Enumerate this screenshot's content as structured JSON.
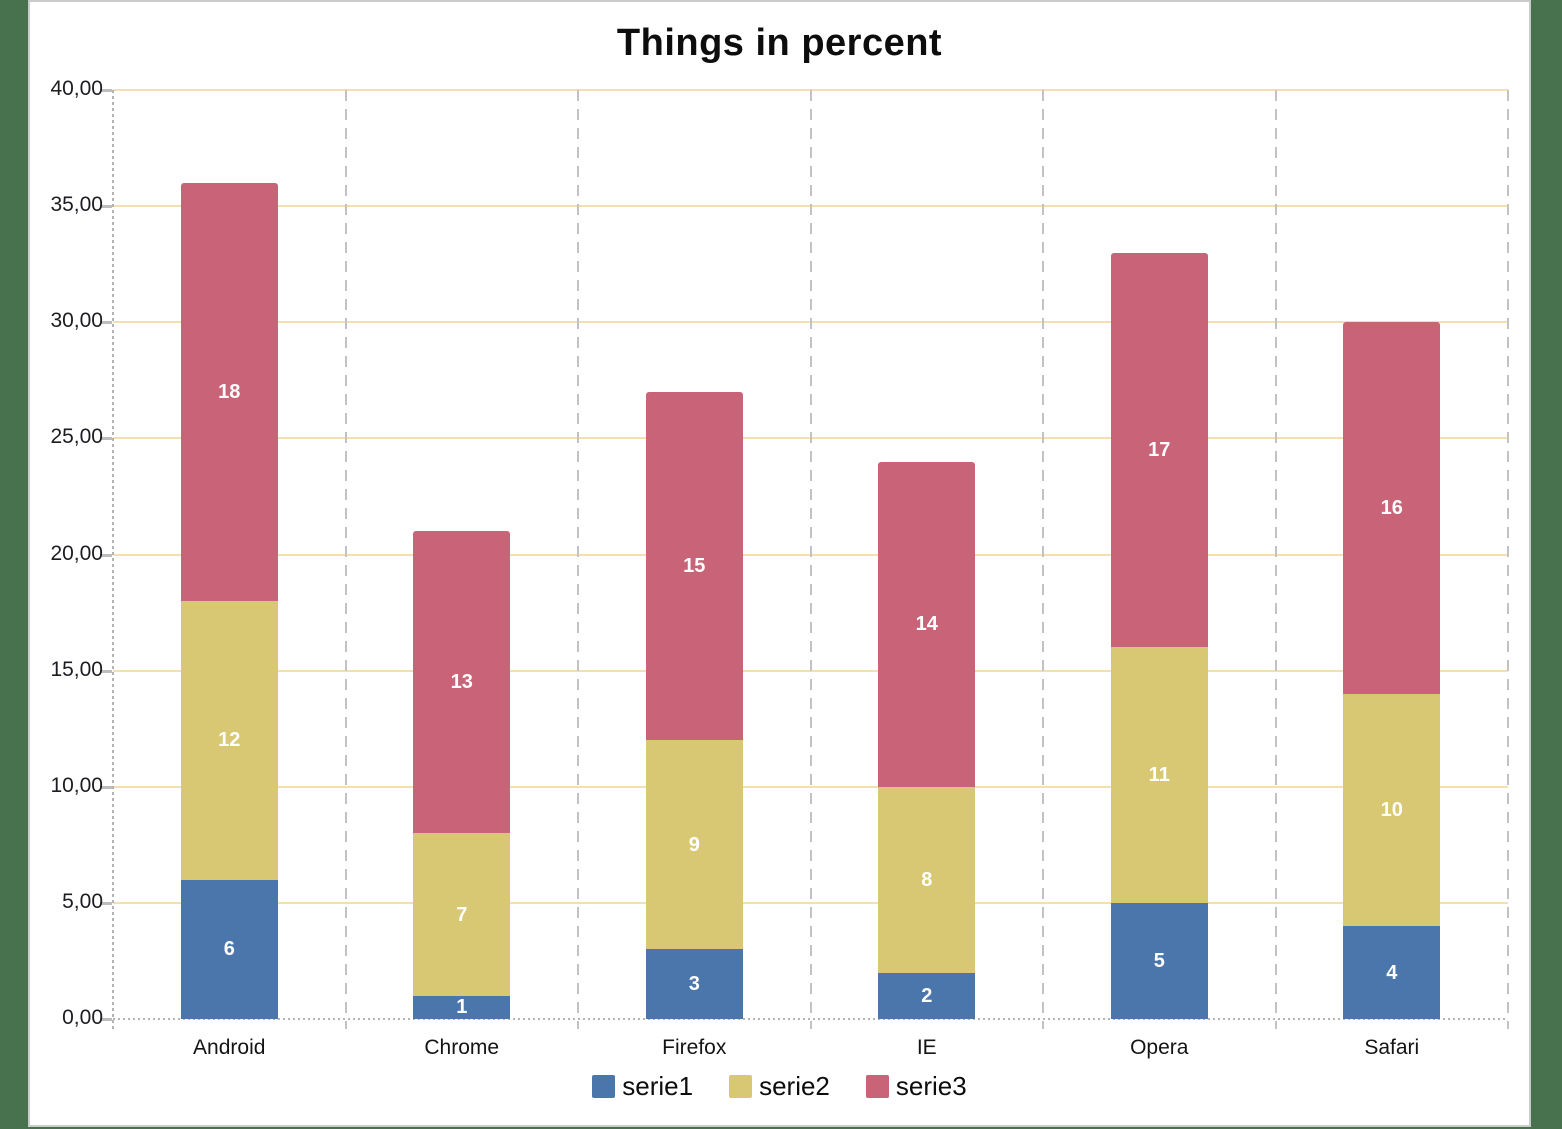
{
  "window": {
    "background_color": "#48714E",
    "panel_background": "#FFFFFF",
    "panel_border_color": "#CBCBCB"
  },
  "chart_data": {
    "type": "bar",
    "stacked": true,
    "title": "Things in percent",
    "categories": [
      "Android",
      "Chrome",
      "Firefox",
      "IE",
      "Opera",
      "Safari"
    ],
    "series": [
      {
        "name": "serie1",
        "color": "#4A76AB",
        "values": [
          6,
          1,
          3,
          2,
          5,
          4
        ]
      },
      {
        "name": "serie2",
        "color": "#D8C873",
        "values": [
          12,
          7,
          9,
          8,
          11,
          10
        ]
      },
      {
        "name": "serie3",
        "color": "#C96377",
        "values": [
          18,
          13,
          15,
          14,
          17,
          16
        ]
      }
    ],
    "totals": [
      36,
      21,
      27,
      24,
      33,
      30
    ],
    "xlabel": "",
    "ylabel": "",
    "ylim": [
      0,
      40
    ],
    "y_ticks": [
      0,
      5,
      10,
      15,
      20,
      25,
      30,
      35,
      40
    ],
    "y_tick_labels": [
      "0,00",
      "5,00",
      "10,00",
      "15,00",
      "20,00",
      "25,00",
      "30,00",
      "35,00",
      "40,00"
    ],
    "grid": {
      "horizontal": true,
      "horizontal_color": "#F3DFB0",
      "vertical_separators": "dashed",
      "vertical_color": "#C2C2C2",
      "axis_color": "#B4B4B4"
    },
    "value_labels": {
      "shown": true,
      "color": "#FFFFFF"
    },
    "legend": {
      "position": "bottom",
      "entries": [
        "serie1",
        "serie2",
        "serie3"
      ]
    }
  }
}
